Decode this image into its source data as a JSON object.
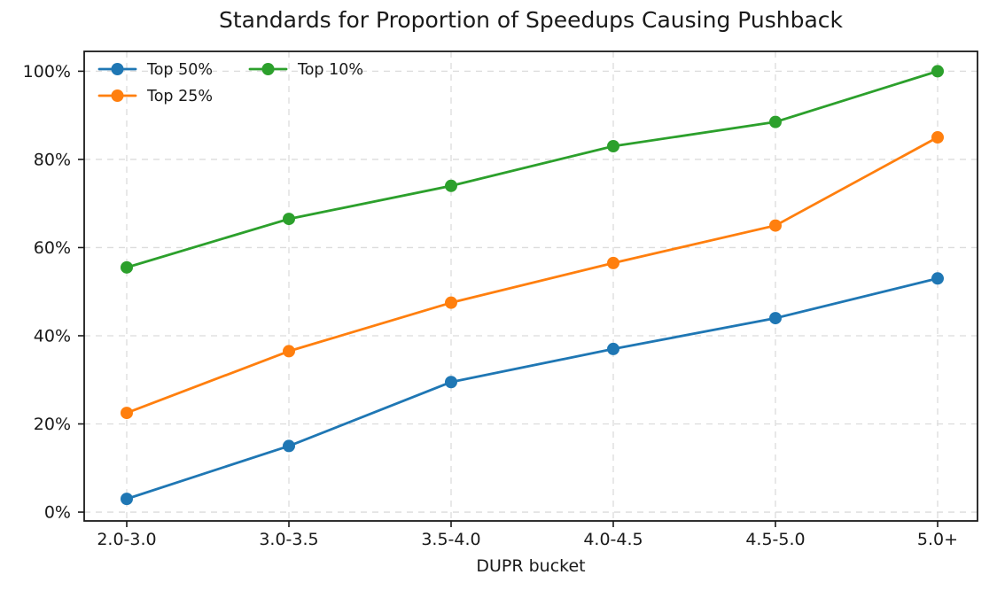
{
  "chart_data": {
    "type": "line",
    "title": "Standards for Proportion of Speedups Causing Pushback",
    "xlabel": "DUPR bucket",
    "ylabel": "",
    "categories": [
      "2.0-3.0",
      "3.0-3.5",
      "3.5-4.0",
      "4.0-4.5",
      "4.5-5.0",
      "5.0+"
    ],
    "series": [
      {
        "name": "Top 50%",
        "color": "#1f77b4",
        "values": [
          3,
          15,
          29.5,
          37,
          44,
          53
        ]
      },
      {
        "name": "Top 25%",
        "color": "#ff7f0e",
        "values": [
          22.5,
          36.5,
          47.5,
          56.5,
          65,
          85
        ]
      },
      {
        "name": "Top 10%",
        "color": "#2ca02c",
        "values": [
          55.5,
          66.5,
          74,
          83,
          88.5,
          100
        ]
      }
    ],
    "y_ticks": [
      0,
      20,
      40,
      60,
      80,
      100
    ],
    "y_tick_labels": [
      "0%",
      "20%",
      "40%",
      "60%",
      "80%",
      "100%"
    ],
    "ylim": [
      -2,
      104.5
    ],
    "grid": true,
    "grid_color": "#dcdcdc",
    "spine_color": "#1a1a1a",
    "legend_position": "upper left",
    "legend_columns": 2
  }
}
